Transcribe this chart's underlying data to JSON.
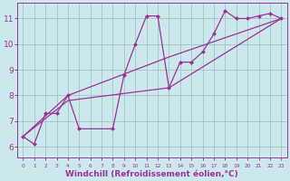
{
  "background_color": "#cce8ec",
  "grid_color": "#aac8cc",
  "line_color": "#993399",
  "marker_color": "#993399",
  "xlabel": "Windchill (Refroidissement éolien,°C)",
  "xlabel_fontsize": 6.5,
  "ylabel_ticks": [
    6,
    7,
    8,
    9,
    10,
    11
  ],
  "xlim": [
    -0.5,
    23.5
  ],
  "ylim": [
    5.6,
    11.6
  ],
  "xtick_labels": [
    "0",
    "1",
    "2",
    "3",
    "4",
    "5",
    "6",
    "7",
    "8",
    "9",
    "10",
    "11",
    "12",
    "13",
    "14",
    "15",
    "16",
    "17",
    "18",
    "19",
    "20",
    "21",
    "22",
    "23"
  ],
  "series_data": {
    "x": [
      0,
      1,
      2,
      3,
      4,
      5,
      8,
      9,
      10,
      11,
      12,
      13,
      14,
      15,
      16,
      17,
      18,
      19,
      20,
      21,
      22,
      23
    ],
    "y": [
      6.4,
      6.1,
      7.3,
      7.3,
      8.0,
      6.7,
      6.7,
      8.8,
      10.0,
      11.1,
      11.1,
      8.3,
      9.3,
      9.3,
      9.7,
      10.4,
      11.3,
      11.0,
      11.0,
      11.1,
      11.2,
      11.0
    ]
  },
  "trend1": {
    "x": [
      0,
      4,
      13,
      23
    ],
    "y": [
      6.4,
      8.0,
      9.5,
      11.0
    ]
  },
  "trend2": {
    "x": [
      0,
      4,
      13,
      23
    ],
    "y": [
      6.4,
      7.8,
      8.3,
      11.0
    ]
  }
}
